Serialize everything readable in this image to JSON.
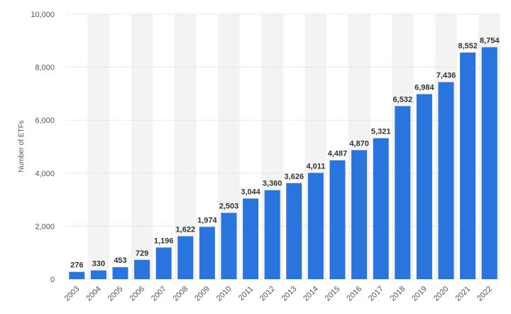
{
  "chart_data": {
    "type": "bar",
    "title": "",
    "xlabel": "",
    "ylabel": "Number of ETFs",
    "ylim": [
      0,
      10000
    ],
    "yticks": [
      0,
      2000,
      4000,
      6000,
      8000,
      10000
    ],
    "ytick_labels": [
      "0",
      "2,000",
      "4,000",
      "6,000",
      "8,000",
      "10,000"
    ],
    "categories": [
      "2003",
      "2004",
      "2005",
      "2006",
      "2007",
      "2008",
      "2009",
      "2010",
      "2011",
      "2012",
      "2013",
      "2014",
      "2015",
      "2016",
      "2017",
      "2018",
      "2019",
      "2020",
      "2021",
      "2022"
    ],
    "values": [
      276,
      330,
      453,
      729,
      1196,
      1622,
      1974,
      2503,
      3044,
      3360,
      3626,
      4011,
      4487,
      4870,
      5321,
      6532,
      6984,
      7436,
      8552,
      8754
    ],
    "value_labels": [
      "276",
      "330",
      "453",
      "729",
      "1,196",
      "1,622",
      "1,974",
      "2,503",
      "3,044",
      "3,360",
      "3,626",
      "4,011",
      "4,487",
      "4,870",
      "5,321",
      "6,532",
      "6,984",
      "7,436",
      "8,552",
      "8,754"
    ],
    "grid": true,
    "legend": "none",
    "colors": {
      "bar": "#2a74dd",
      "band": "#f3f3f3",
      "grid": "#c8c8c8"
    }
  }
}
